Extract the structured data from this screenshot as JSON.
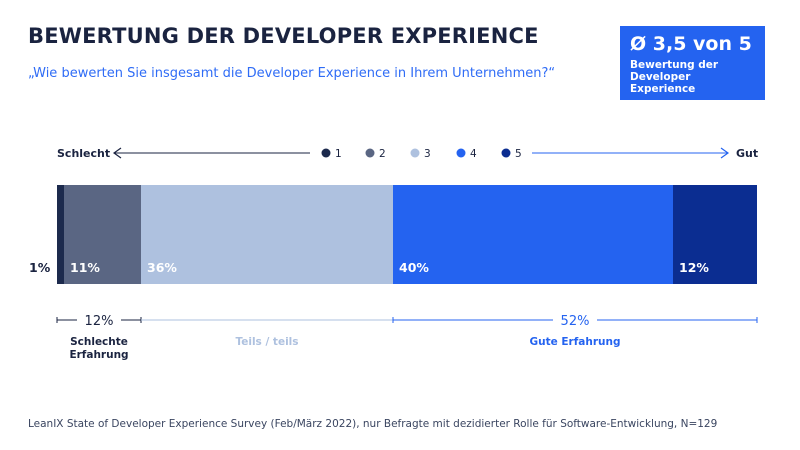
{
  "title": "BEWERTUNG DER DEVELOPER EXPERIENCE",
  "subtitle": "„Wie bewerten Sie insgesamt die Developer Experience in Ihrem Unternehmen?“",
  "badge": {
    "value": "Ø 3,5 von 5",
    "caption": "Bewertung der Developer Experience"
  },
  "scale": {
    "left_label": "Schlecht",
    "right_label": "Gut"
  },
  "source": "LeanIX State of Developer Experience Survey (Feb/März 2022), nur Befragte mit dezidierter Rolle für Software-Entwicklung, N=129",
  "colors": {
    "1": "#1c2a4d",
    "2": "#5a6683",
    "3": "#aec1df",
    "4": "#2463f0",
    "5": "#0b2d91"
  },
  "chart_data": {
    "type": "bar",
    "orientation": "horizontal-stacked",
    "categories": [
      "1",
      "2",
      "3",
      "4",
      "5"
    ],
    "values": [
      1,
      11,
      36,
      40,
      12
    ],
    "value_labels": [
      "1%",
      "11%",
      "36%",
      "40%",
      "12%"
    ],
    "legend": [
      "1",
      "2",
      "3",
      "4",
      "5"
    ],
    "groups": [
      {
        "label": "Schlechte Erfahrung",
        "value_label": "12%",
        "categories": [
          "1",
          "2"
        ]
      },
      {
        "label": "Teils / teils",
        "value_label": "",
        "categories": [
          "3"
        ]
      },
      {
        "label": "Gute Erfahrung",
        "value_label": "52%",
        "categories": [
          "4",
          "5"
        ]
      }
    ]
  }
}
